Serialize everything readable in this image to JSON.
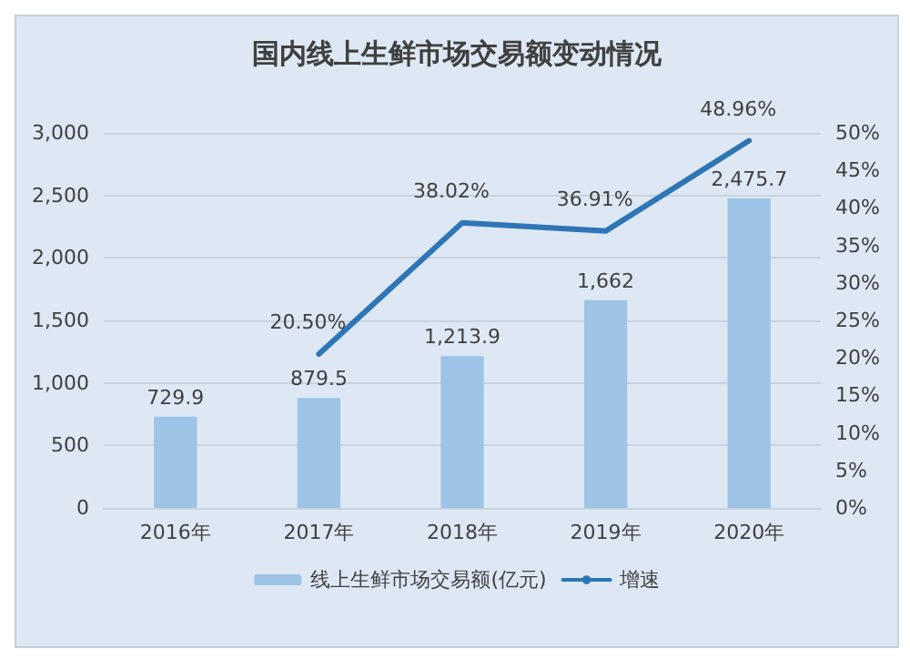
{
  "chart_data": {
    "type": "bar",
    "title": "国内线上生鲜市场交易额变动情况",
    "categories": [
      "2016年",
      "2017年",
      "2018年",
      "2019年",
      "2020年"
    ],
    "series": [
      {
        "name": "线上生鲜市场交易额(亿元)",
        "color": "#9dc3e6",
        "values": [
          729.9,
          879.5,
          1213.9,
          1662,
          2475.7
        ],
        "value_labels": [
          "729.9",
          "879.5",
          "1,213.9",
          "1,662",
          "2,475.7"
        ]
      },
      {
        "name": "增速",
        "type": "line",
        "axis": "y2",
        "color": "#2e75b6",
        "values": [
          null,
          20.5,
          38.02,
          36.91,
          48.96
        ],
        "value_labels": [
          null,
          "20.50%",
          "38.02%",
          "36.91%",
          "48.96%"
        ]
      }
    ],
    "ylim": [
      0,
      3000
    ],
    "yticks": [
      0,
      500,
      {
        "value": 1000,
        "label": "1,000"
      },
      {
        "value": 1500,
        "label": "1,500"
      },
      {
        "value": 2000,
        "label": "2,000"
      },
      {
        "value": 2500,
        "label": "2,500"
      },
      {
        "value": 3000,
        "label": "3,000"
      }
    ],
    "y2lim": [
      0,
      50
    ],
    "y2ticks": [
      {
        "value": 0,
        "label": "0%"
      },
      {
        "value": 5,
        "label": "5%"
      },
      {
        "value": 10,
        "label": "10%"
      },
      {
        "value": 15,
        "label": "15%"
      },
      {
        "value": 20,
        "label": "20%"
      },
      {
        "value": 25,
        "label": "25%"
      },
      {
        "value": 30,
        "label": "30%"
      },
      {
        "value": 35,
        "label": "35%"
      },
      {
        "value": 40,
        "label": "40%"
      },
      {
        "value": 45,
        "label": "45%"
      },
      {
        "value": 50,
        "label": "50%"
      }
    ],
    "grid": "y",
    "legend": "bottom",
    "marker": "none",
    "line_style": "solid"
  }
}
